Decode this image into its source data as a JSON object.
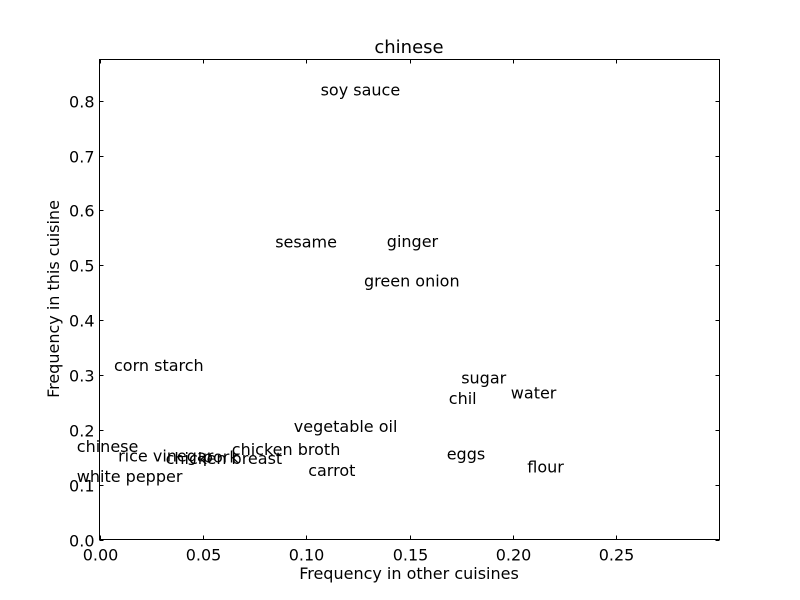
{
  "chart_data": {
    "type": "scatter",
    "title": "chinese",
    "xlabel": "Frequency in other cuisines",
    "ylabel": "Frequency in this cuisine",
    "xlim": [
      0.0,
      0.3
    ],
    "ylim": [
      0.0,
      0.875
    ],
    "xticks": [
      0.0,
      0.05,
      0.1,
      0.15,
      0.2,
      0.25
    ],
    "xtick_labels": [
      "0.00",
      "0.05",
      "0.10",
      "0.15",
      "0.20",
      "0.25"
    ],
    "yticks": [
      0.0,
      0.1,
      0.2,
      0.3,
      0.4,
      0.5,
      0.6,
      0.7,
      0.8
    ],
    "ytick_labels": [
      "0.0",
      "0.1",
      "0.2",
      "0.3",
      "0.4",
      "0.5",
      "0.6",
      "0.7",
      "0.8"
    ],
    "grid": false,
    "points": [
      {
        "label": "soy sauce",
        "x": 0.107,
        "y": 0.82
      },
      {
        "label": "sesame",
        "x": 0.085,
        "y": 0.543
      },
      {
        "label": "ginger",
        "x": 0.139,
        "y": 0.544
      },
      {
        "label": "green onion",
        "x": 0.128,
        "y": 0.472
      },
      {
        "label": "corn starch",
        "x": 0.007,
        "y": 0.318
      },
      {
        "label": "sugar",
        "x": 0.175,
        "y": 0.295
      },
      {
        "label": "water",
        "x": 0.199,
        "y": 0.268
      },
      {
        "label": "chil",
        "x": 0.169,
        "y": 0.258
      },
      {
        "label": "vegetable oil",
        "x": 0.094,
        "y": 0.207
      },
      {
        "label": "chinese",
        "x": -0.011,
        "y": 0.17
      },
      {
        "label": "chicken broth",
        "x": 0.064,
        "y": 0.165
      },
      {
        "label": "eggs",
        "x": 0.168,
        "y": 0.157
      },
      {
        "label": "rice vinegar",
        "x": 0.009,
        "y": 0.153
      },
      {
        "label": "chicken breast",
        "x": 0.032,
        "y": 0.149
      },
      {
        "label": "pork",
        "x": 0.05,
        "y": 0.151
      },
      {
        "label": "flour",
        "x": 0.207,
        "y": 0.133
      },
      {
        "label": "carrot",
        "x": 0.101,
        "y": 0.127
      },
      {
        "label": "white pepper",
        "x": -0.011,
        "y": 0.116
      }
    ]
  }
}
